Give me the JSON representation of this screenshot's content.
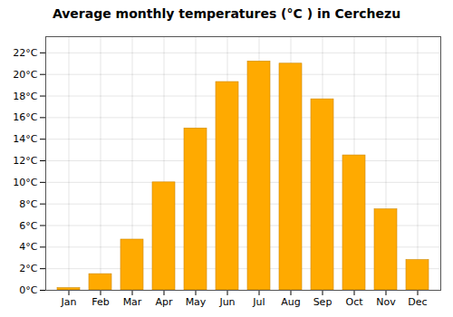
{
  "chart_data": {
    "type": "bar",
    "title": "Average monthly temperatures (°C ) in Cerchezu",
    "categories": [
      "Jan",
      "Feb",
      "Mar",
      "Apr",
      "May",
      "Jun",
      "Jul",
      "Aug",
      "Sep",
      "Oct",
      "Nov",
      "Dec"
    ],
    "values": [
      0.2,
      1.5,
      4.7,
      10.0,
      15.0,
      19.3,
      21.2,
      21.0,
      17.7,
      12.5,
      7.5,
      2.8
    ],
    "color": "#FFAA00",
    "ylim": [
      0,
      23.5
    ],
    "yticks": [
      {
        "value": 0,
        "label": "0°C"
      },
      {
        "value": 2,
        "label": "2°C"
      },
      {
        "value": 4,
        "label": "4°C"
      },
      {
        "value": 6,
        "label": "6°C"
      },
      {
        "value": 8,
        "label": "8°C"
      },
      {
        "value": 10,
        "label": "10°C"
      },
      {
        "value": 12,
        "label": "12°C"
      },
      {
        "value": 14,
        "label": "14°C"
      },
      {
        "value": 16,
        "label": "16°C"
      },
      {
        "value": 18,
        "label": "18°C"
      },
      {
        "value": 20,
        "label": "20°C"
      },
      {
        "value": 22,
        "label": "22°C"
      }
    ],
    "grid": true
  }
}
